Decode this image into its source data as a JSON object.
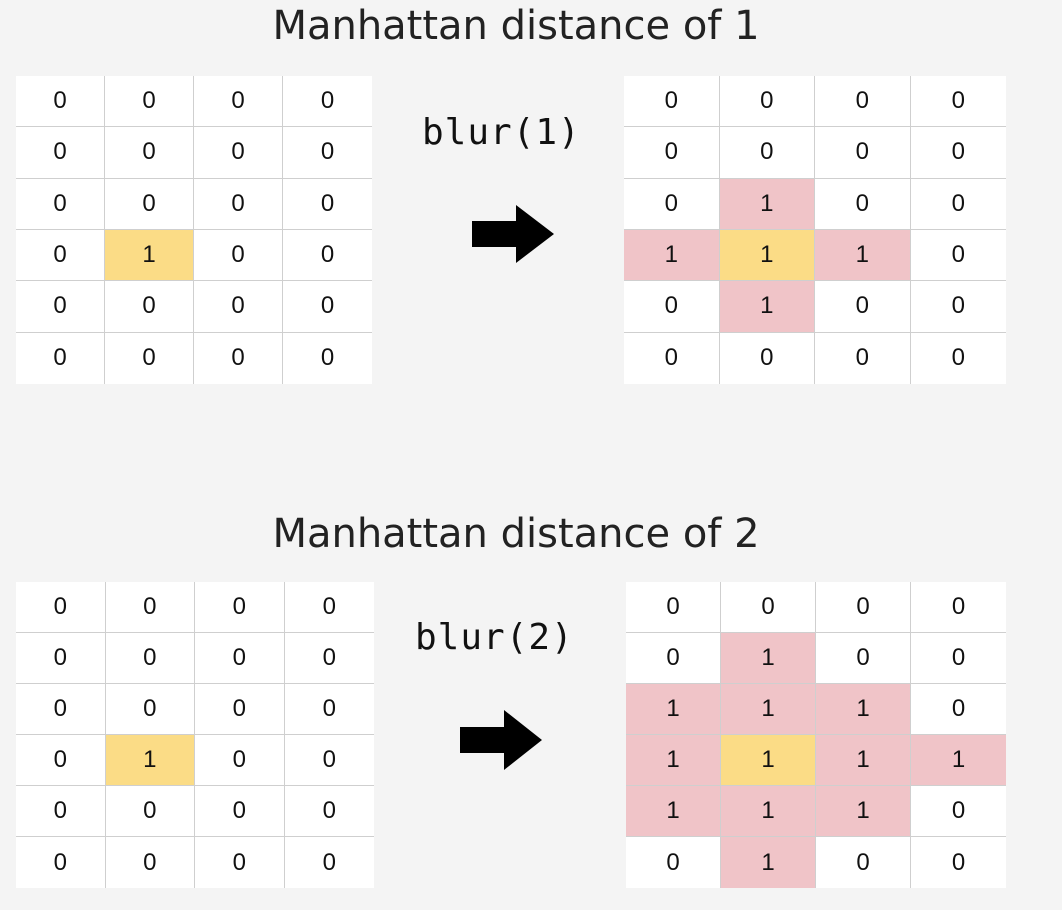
{
  "panels": [
    {
      "title": "Manhattan distance of 1",
      "operation": "blur(1)",
      "input": [
        [
          "0",
          "0",
          "0",
          "0"
        ],
        [
          "0",
          "0",
          "0",
          "0"
        ],
        [
          "0",
          "0",
          "0",
          "0"
        ],
        [
          "0",
          "1",
          "0",
          "0"
        ],
        [
          "0",
          "0",
          "0",
          "0"
        ],
        [
          "0",
          "0",
          "0",
          "0"
        ]
      ],
      "output": [
        [
          "0",
          "0",
          "0",
          "0"
        ],
        [
          "0",
          "0",
          "0",
          "0"
        ],
        [
          "0",
          "1",
          "0",
          "0"
        ],
        [
          "1",
          "1",
          "1",
          "0"
        ],
        [
          "0",
          "1",
          "0",
          "0"
        ],
        [
          "0",
          "0",
          "0",
          "0"
        ]
      ],
      "input_highlight": [
        [
          3,
          1
        ]
      ],
      "output_center": [
        [
          3,
          1
        ]
      ],
      "output_spread": [
        [
          2,
          1
        ],
        [
          3,
          0
        ],
        [
          3,
          2
        ],
        [
          4,
          1
        ]
      ]
    },
    {
      "title": "Manhattan distance of 2",
      "operation": "blur(2)",
      "input": [
        [
          "0",
          "0",
          "0",
          "0"
        ],
        [
          "0",
          "0",
          "0",
          "0"
        ],
        [
          "0",
          "0",
          "0",
          "0"
        ],
        [
          "0",
          "1",
          "0",
          "0"
        ],
        [
          "0",
          "0",
          "0",
          "0"
        ],
        [
          "0",
          "0",
          "0",
          "0"
        ]
      ],
      "output": [
        [
          "0",
          "0",
          "0",
          "0"
        ],
        [
          "0",
          "1",
          "0",
          "0"
        ],
        [
          "1",
          "1",
          "1",
          "0"
        ],
        [
          "1",
          "1",
          "1",
          "1"
        ],
        [
          "1",
          "1",
          "1",
          "0"
        ],
        [
          "0",
          "1",
          "0",
          "0"
        ]
      ],
      "input_highlight": [
        [
          3,
          1
        ]
      ],
      "output_center": [
        [
          3,
          1
        ]
      ],
      "output_spread": [
        [
          1,
          1
        ],
        [
          2,
          0
        ],
        [
          2,
          1
        ],
        [
          2,
          2
        ],
        [
          3,
          0
        ],
        [
          3,
          2
        ],
        [
          3,
          3
        ],
        [
          4,
          0
        ],
        [
          4,
          1
        ],
        [
          4,
          2
        ],
        [
          5,
          1
        ]
      ]
    }
  ],
  "colors": {
    "center": "#fbdc86",
    "spread": "#f0c4c8",
    "arrow": "#000000"
  },
  "icons": {
    "arrow": "right-arrow-icon"
  }
}
